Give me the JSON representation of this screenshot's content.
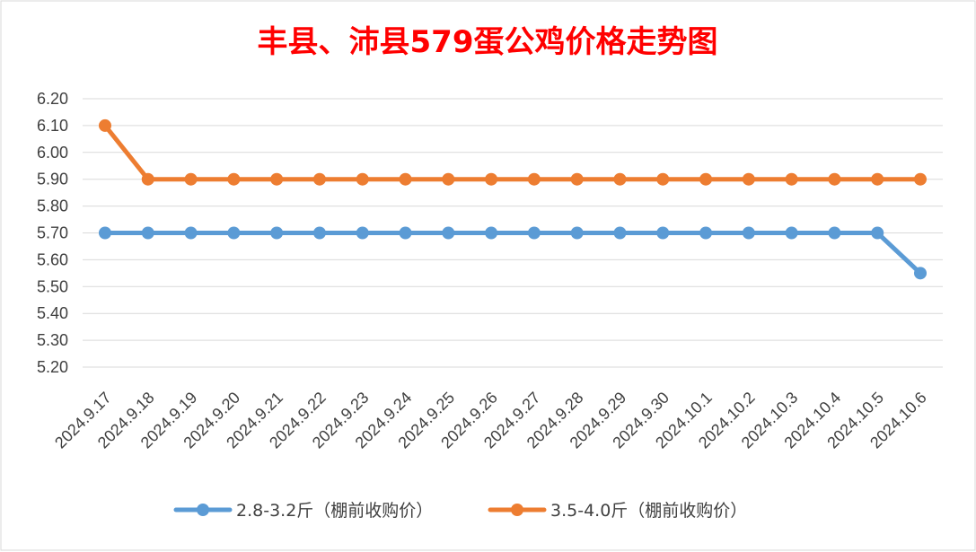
{
  "chart_data": {
    "type": "line",
    "title": "丰县、沛县579蛋公鸡价格走势图",
    "xlabel": "",
    "ylabel": "",
    "categories": [
      "2024.9.17",
      "2024.9.18",
      "2024.9.19",
      "2024.9.20",
      "2024.9.21",
      "2024.9.22",
      "2024.9.23",
      "2024.9.24",
      "2024.9.25",
      "2024.9.26",
      "2024.9.27",
      "2024.9.28",
      "2024.9.29",
      "2024.9.30",
      "2024.10.1",
      "2024.10.2",
      "2024.10.3",
      "2024.10.4",
      "2024.10.5",
      "2024.10.6"
    ],
    "y_ticks": [
      "5.20",
      "5.30",
      "5.40",
      "5.50",
      "5.60",
      "5.70",
      "5.80",
      "5.90",
      "6.00",
      "6.10",
      "6.20"
    ],
    "ylim": [
      5.2,
      6.2
    ],
    "grid": true,
    "legend_position": "bottom",
    "series": [
      {
        "name": "2.8-3.2斤（棚前收购价）",
        "color": "#5b9bd5",
        "values": [
          5.7,
          5.7,
          5.7,
          5.7,
          5.7,
          5.7,
          5.7,
          5.7,
          5.7,
          5.7,
          5.7,
          5.7,
          5.7,
          5.7,
          5.7,
          5.7,
          5.7,
          5.7,
          5.7,
          5.55
        ]
      },
      {
        "name": "3.5-4.0斤（棚前收购价）",
        "color": "#ed7d31",
        "values": [
          6.1,
          5.9,
          5.9,
          5.9,
          5.9,
          5.9,
          5.9,
          5.9,
          5.9,
          5.9,
          5.9,
          5.9,
          5.9,
          5.9,
          5.9,
          5.9,
          5.9,
          5.9,
          5.9,
          5.9
        ]
      }
    ]
  }
}
